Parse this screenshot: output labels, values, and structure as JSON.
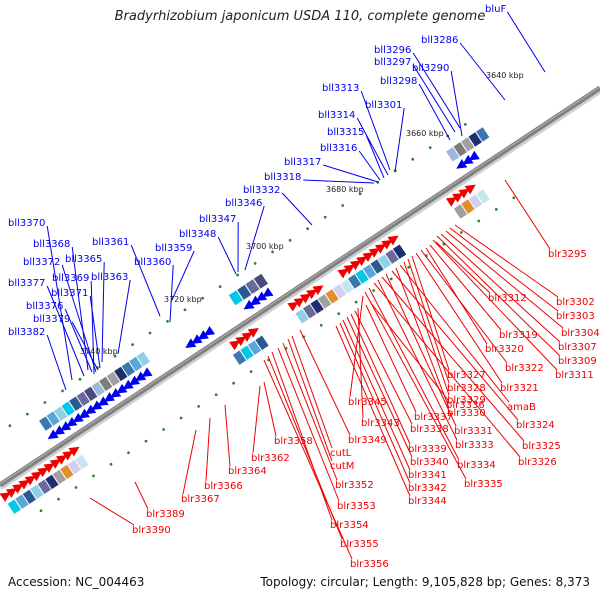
{
  "title": "Bradyrhizobium japonicum USDA 110, complete genome",
  "accession": "Accession: NC_004463",
  "topology": "Topology: circular; Length: 9,105,828 bp; Genes: 8,373",
  "colors": {
    "reverse": "#0000ee",
    "forward": "#ee0000",
    "backbone": "#808080",
    "cog_marker": "#2a8a2a"
  },
  "kbp_ticks": [
    "3640 kbp",
    "3660 kbp",
    "3680 kbp",
    "3700 kbp",
    "3720 kbp",
    "3740 kbp"
  ],
  "genes_reverse": [
    "bluF",
    "bll3286",
    "bll3296",
    "bll3297",
    "bll3290",
    "bll3298",
    "bll3313",
    "bll3301",
    "bll3314",
    "bll3315",
    "bll3316",
    "bll3317",
    "bll3318",
    "bll3332",
    "bll3346",
    "bll3347",
    "bll3348",
    "bll3359",
    "bll3361",
    "bll3360",
    "bll3370",
    "bll3368",
    "bll3365",
    "bll3372",
    "bll3363",
    "bll3377",
    "bll3369",
    "bll3371",
    "bll3376",
    "bll3379",
    "bll3382"
  ],
  "genes_forward": [
    "blr3295",
    "blr3302",
    "blr3303",
    "blr3304",
    "blr3307",
    "blr3309",
    "blr3311",
    "blr3312",
    "blr3319",
    "blr3320",
    "blr3322",
    "blr3321",
    "blr3327",
    "blr3328",
    "blr3329",
    "amaB",
    "blr3330",
    "blr3324",
    "blr3345",
    "blr3336",
    "blr3337",
    "blr3343",
    "blr3338",
    "blr3331",
    "blr3325",
    "blr3333",
    "blr3326",
    "blr3349",
    "blr3339",
    "blr3358",
    "blr3340",
    "blr3334",
    "cutL",
    "blr3341",
    "cutM",
    "blr3362",
    "blr3342",
    "blr3335",
    "blr3364",
    "blr3344",
    "blr3366",
    "blr3352",
    "blr3367",
    "blr3353",
    "blr3389",
    "blr3354",
    "blr3390",
    "blr3355",
    "blr3356"
  ]
}
